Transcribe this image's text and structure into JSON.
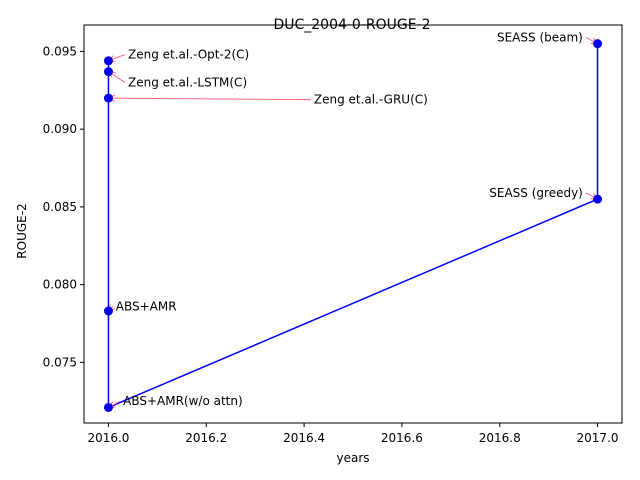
{
  "chart_data": {
    "type": "line",
    "title": "DUC_2004-0-ROUGE-2",
    "xlabel": "years",
    "ylabel": "ROUGE-2",
    "xlim": [
      2015.95,
      2017.05
    ],
    "ylim": [
      0.0711,
      0.0967
    ],
    "x_ticks": [
      2016.0,
      2016.2,
      2016.4,
      2016.6,
      2016.8,
      2017.0
    ],
    "x_tick_labels": [
      "2016.0",
      "2016.2",
      "2016.4",
      "2016.6",
      "2016.8",
      "2017.0"
    ],
    "y_ticks": [
      0.075,
      0.08,
      0.085,
      0.09,
      0.095
    ],
    "y_tick_labels": [
      "0.075",
      "0.080",
      "0.085",
      "0.090",
      "0.095"
    ],
    "grid": false,
    "line_color": "#0000ff",
    "marker_color": "#0000ee",
    "arrow_color": "#ff6680",
    "points": [
      {
        "x": 2016.0,
        "y": 0.0944,
        "label": "Zeng et.al.-Opt-2(C)",
        "label_x": 2016.04,
        "label_y": 0.0948,
        "ha": "start"
      },
      {
        "x": 2016.0,
        "y": 0.0937,
        "label": "Zeng et.al.-LSTM(C)",
        "label_x": 2016.04,
        "label_y": 0.093,
        "ha": "start"
      },
      {
        "x": 2016.0,
        "y": 0.092,
        "label": "Zeng et.al.-GRU(C)",
        "label_x": 2016.42,
        "label_y": 0.0919,
        "ha": "start"
      },
      {
        "x": 2016.0,
        "y": 0.0783,
        "label": "ABS+AMR",
        "label_x": 2016.015,
        "label_y": 0.0786,
        "ha": "start"
      },
      {
        "x": 2016.0,
        "y": 0.0721,
        "label": "ABS+AMR(w/o attn)",
        "label_x": 2016.03,
        "label_y": 0.0725,
        "ha": "start"
      },
      {
        "x": 2017.0,
        "y": 0.0855,
        "label": "SEASS (greedy)",
        "label_x": 2016.97,
        "label_y": 0.0859,
        "ha": "end"
      },
      {
        "x": 2017.0,
        "y": 0.0955,
        "label": "SEASS (beam)",
        "label_x": 2016.97,
        "label_y": 0.0959,
        "ha": "end"
      }
    ]
  }
}
